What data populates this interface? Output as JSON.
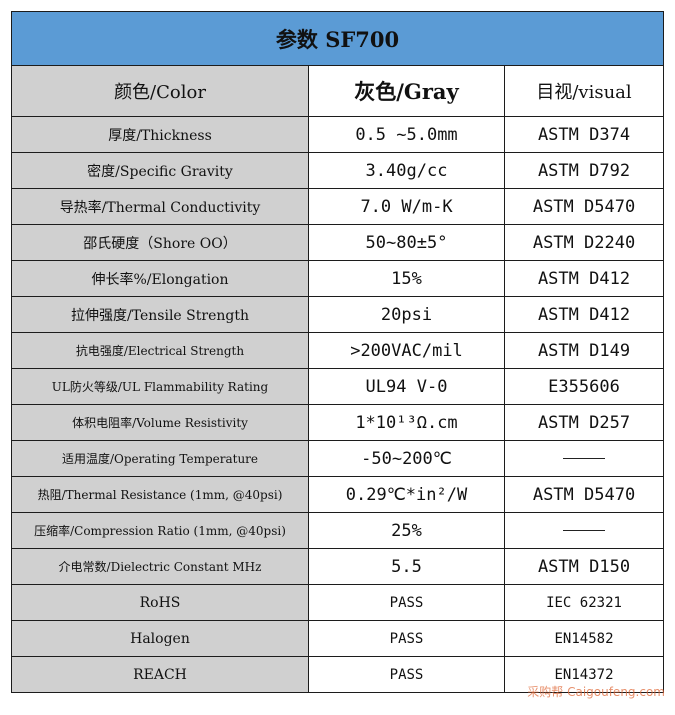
{
  "title": "参数  SF700",
  "header": {
    "property": "颜色/Color",
    "value": "灰色/Gray",
    "standard": "目视/visual"
  },
  "rows": [
    {
      "property": "厚度/Thickness",
      "value": "0.5 ~5.0mm",
      "standard": "ASTM D374"
    },
    {
      "property": "密度/Specific Gravity",
      "value": "3.40g/cc",
      "standard": "ASTM D792"
    },
    {
      "property": "导热率/Thermal Conductivity",
      "value": "7.0 W/m-K",
      "standard": "ASTM D5470"
    },
    {
      "property": "邵氏硬度（Shore OO）",
      "value": "50~80±5°",
      "standard": "ASTM D2240"
    },
    {
      "property": "伸长率%/Elongation",
      "value": "15%",
      "standard": "ASTM D412"
    },
    {
      "property": "拉伸强度/Tensile Strength",
      "value": "20psi",
      "standard": "ASTM D412"
    },
    {
      "property": "抗电强度/Electrical Strength",
      "value": ">200VAC/mil",
      "standard": "ASTM D149"
    },
    {
      "property": "UL防火等级/UL Flammability Rating",
      "value": "UL94 V-0",
      "standard": "E355606"
    },
    {
      "property": "体积电阻率/Volume Resistivity",
      "value": "1*10¹³Ω.cm",
      "standard": "ASTM D257"
    },
    {
      "property": "适用温度/Operating Temperature",
      "value": "-50~200℃",
      "standard": ""
    },
    {
      "property": "热阻/Thermal Resistance (1mm, @40psi)",
      "value": "0.29℃*in²/W",
      "standard": "ASTM D5470"
    },
    {
      "property": "压缩率/Compression Ratio (1mm, @40psi)",
      "value": "25%",
      "standard": ""
    },
    {
      "property": "介电常数/Dielectric Constant MHz",
      "value": "5.5",
      "standard": "ASTM D150"
    },
    {
      "property": "RoHS",
      "value": "PASS",
      "standard": "IEC 62321"
    },
    {
      "property": "Halogen",
      "value": "PASS",
      "standard": "EN14582"
    },
    {
      "property": "REACH",
      "value": "PASS",
      "standard": "EN14372"
    }
  ],
  "watermark": "采购帮 Caigoufeng.com"
}
